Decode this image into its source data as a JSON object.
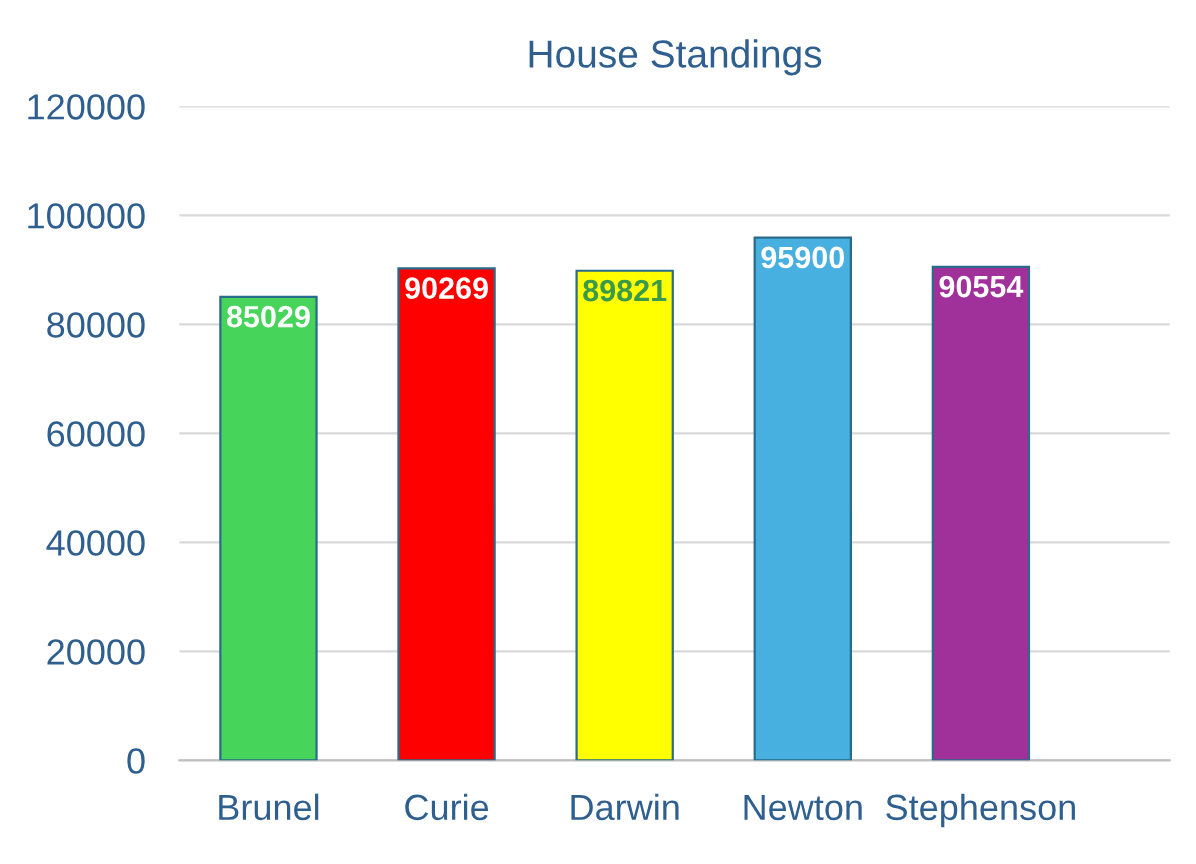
{
  "chart_data": {
    "type": "bar",
    "title": "House Standings",
    "categories": [
      "Brunel",
      "Curie",
      "Darwin",
      "Newton",
      "Stephenson"
    ],
    "values": [
      85029,
      90269,
      89821,
      95900,
      90554
    ],
    "colors": [
      "#47d45a",
      "#ff0000",
      "#ffff00",
      "#47b0e0",
      "#a0309a"
    ],
    "ylim": [
      0,
      120000
    ],
    "yticks": [
      0,
      20000,
      40000,
      60000,
      80000,
      100000,
      120000
    ],
    "grid": "y",
    "data_labels": true
  }
}
